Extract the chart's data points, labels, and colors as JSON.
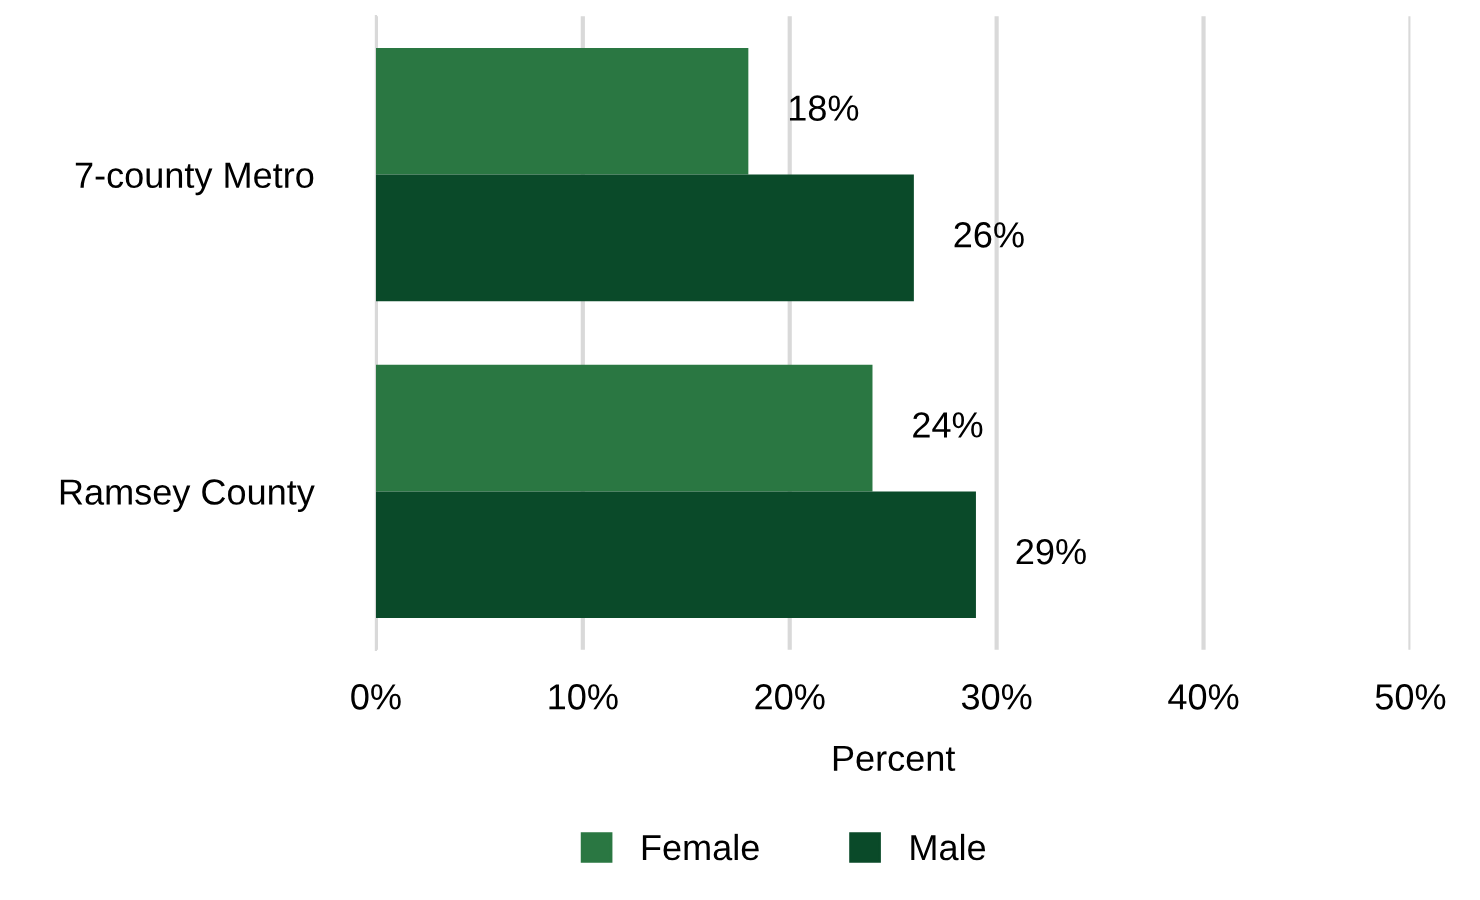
{
  "chart_data": {
    "type": "bar",
    "orientation": "horizontal",
    "xlabel": "Percent",
    "categories": [
      "7-county Metro",
      "Ramsey County"
    ],
    "series": [
      {
        "name": "Female",
        "color": "#2a7742",
        "values": [
          18,
          24
        ],
        "value_labels": [
          "18%",
          "24%"
        ]
      },
      {
        "name": "Male",
        "color": "#0a4a29",
        "values": [
          26,
          29
        ],
        "value_labels": [
          "26%",
          "29%"
        ]
      }
    ],
    "xlim": [
      0,
      50
    ],
    "xticks": [
      {
        "value": 0,
        "label": "0%"
      },
      {
        "value": 10,
        "label": "10%"
      },
      {
        "value": 20,
        "label": "20%"
      },
      {
        "value": 30,
        "label": "30%"
      },
      {
        "value": 40,
        "label": "40%"
      },
      {
        "value": 50,
        "label": "50%"
      }
    ],
    "grid": "x",
    "legend": "bottom"
  }
}
